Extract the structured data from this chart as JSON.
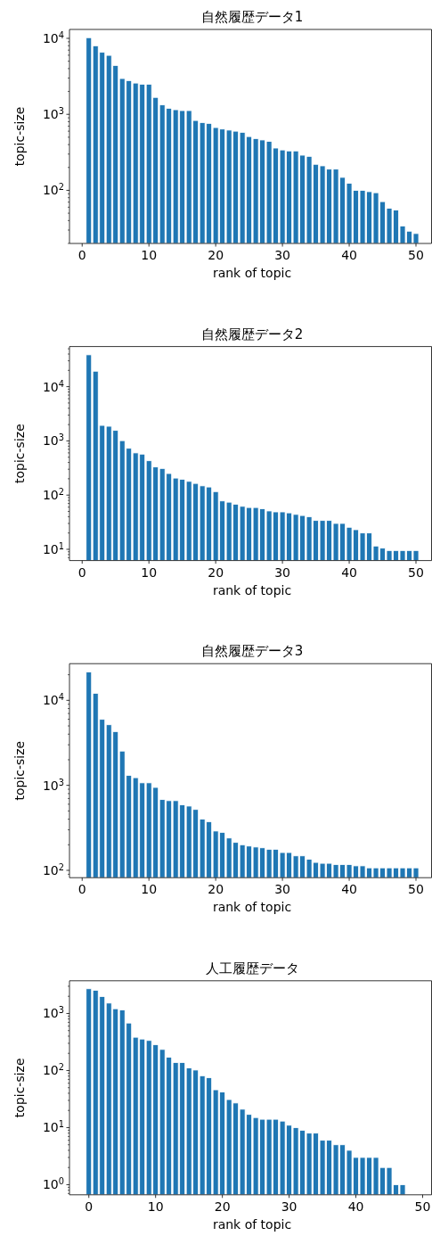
{
  "chart_data": [
    {
      "type": "bar",
      "title": "自然履歴データ1",
      "xlabel": "rank of topic",
      "ylabel": "topic-size",
      "color": "#1f77b4",
      "log": true,
      "x": [
        1,
        2,
        3,
        4,
        5,
        6,
        7,
        8,
        9,
        10,
        11,
        12,
        13,
        14,
        15,
        16,
        17,
        18,
        19,
        20,
        21,
        22,
        23,
        24,
        25,
        26,
        27,
        28,
        29,
        30,
        31,
        32,
        33,
        34,
        35,
        36,
        37,
        38,
        39,
        40,
        41,
        42,
        43,
        44,
        45,
        46,
        47,
        48,
        49,
        50
      ],
      "values": [
        10200,
        7980,
        6550,
        5970,
        4400,
        2960,
        2780,
        2580,
        2490,
        2490,
        1670,
        1330,
        1200,
        1150,
        1120,
        1120,
        830,
        780,
        760,
        670,
        640,
        620,
        600,
        580,
        510,
        480,
        460,
        440,
        360,
        340,
        330,
        330,
        290,
        280,
        220,
        210,
        190,
        190,
        148,
        124,
        100,
        100,
        96,
        93,
        71,
        58,
        55,
        34,
        29,
        27
      ],
      "xlim": [
        -1.9,
        52.4
      ],
      "xticks": [
        0,
        10,
        20,
        30,
        40,
        50
      ],
      "ylim": [
        20,
        13100
      ],
      "yticks": [
        {
          "value": 100,
          "label": "10$^{2}$"
        },
        {
          "value": 1000,
          "label": "10$^{3}$"
        },
        {
          "value": 10000,
          "label": "10$^{4}$"
        }
      ]
    },
    {
      "type": "bar",
      "title": "自然履歴データ2",
      "xlabel": "rank of topic",
      "ylabel": "topic-size",
      "color": "#1f77b4",
      "log": true,
      "x": [
        1,
        2,
        3,
        4,
        5,
        6,
        7,
        8,
        9,
        10,
        11,
        12,
        13,
        14,
        15,
        16,
        17,
        18,
        19,
        20,
        21,
        22,
        23,
        24,
        25,
        26,
        27,
        28,
        29,
        30,
        31,
        32,
        33,
        34,
        35,
        36,
        37,
        38,
        39,
        40,
        41,
        42,
        43,
        44,
        45,
        46,
        47,
        48,
        49,
        50
      ],
      "values": [
        38700,
        19300,
        1930,
        1860,
        1560,
        1010,
        730,
        600,
        570,
        430,
        330,
        310,
        250,
        206,
        196,
        179,
        164,
        148,
        141,
        116,
        78,
        74,
        68,
        62,
        59,
        59,
        56,
        51,
        49,
        49,
        47,
        44,
        42,
        40,
        34,
        34,
        34,
        30,
        30,
        25.5,
        23,
        20,
        20,
        11.5,
        10.5,
        9.5,
        9.5,
        9.5,
        9.5,
        9.5
      ],
      "xlim": [
        -1.9,
        52.4
      ],
      "xticks": [
        0,
        10,
        20,
        30,
        40,
        50
      ],
      "ylim": [
        6.2,
        55000
      ],
      "yticks": [
        {
          "value": 10,
          "label": "10$^{1}$"
        },
        {
          "value": 100,
          "label": "10$^{2}$"
        },
        {
          "value": 1000,
          "label": "10$^{3}$"
        },
        {
          "value": 10000,
          "label": "10$^{4}$"
        }
      ]
    },
    {
      "type": "bar",
      "title": "自然履歴データ3",
      "xlabel": "rank of topic",
      "ylabel": "topic-size",
      "color": "#1f77b4",
      "log": true,
      "x": [
        1,
        2,
        3,
        4,
        5,
        6,
        7,
        8,
        9,
        10,
        11,
        12,
        13,
        14,
        15,
        16,
        17,
        18,
        19,
        20,
        21,
        22,
        23,
        24,
        25,
        26,
        27,
        28,
        29,
        30,
        31,
        32,
        33,
        34,
        35,
        36,
        37,
        38,
        39,
        40,
        41,
        42,
        43,
        44,
        45,
        46,
        47,
        48,
        49,
        50
      ],
      "values": [
        21500,
        12100,
        5970,
        5160,
        4290,
        2530,
        1310,
        1230,
        1070,
        1070,
        945,
        680,
        660,
        660,
        590,
        570,
        520,
        400,
        374,
        290,
        280,
        240,
        213,
        200,
        193,
        188,
        184,
        177,
        177,
        162,
        162,
        148,
        148,
        135,
        124,
        121,
        121,
        117,
        117,
        117,
        113,
        113,
        107,
        107,
        107,
        107,
        107,
        107,
        107,
        107
      ],
      "xlim": [
        -1.9,
        52.4
      ],
      "xticks": [
        0,
        10,
        20,
        30,
        40,
        50
      ],
      "ylim": [
        82,
        27000
      ],
      "yticks": [
        {
          "value": 100,
          "label": "10$^{2}$"
        },
        {
          "value": 1000,
          "label": "10$^{3}$"
        },
        {
          "value": 10000,
          "label": "10$^{4}$"
        }
      ]
    },
    {
      "type": "bar",
      "title": "人工履歴データ",
      "xlabel": "rank of topic",
      "ylabel": "topic-size",
      "color": "#1f77b4",
      "log": true,
      "x": [
        0,
        1,
        2,
        3,
        4,
        5,
        6,
        7,
        8,
        9,
        10,
        11,
        12,
        13,
        14,
        15,
        16,
        17,
        18,
        19,
        20,
        21,
        22,
        23,
        24,
        25,
        26,
        27,
        28,
        29,
        30,
        31,
        32,
        33,
        34,
        35,
        36,
        37,
        38,
        39,
        40,
        41,
        42,
        43,
        44,
        45,
        46,
        47
      ],
      "values": [
        2710,
        2550,
        1980,
        1520,
        1210,
        1150,
        680,
        383,
        356,
        336,
        284,
        234,
        171,
        138,
        138,
        111,
        102,
        81,
        75,
        46,
        42,
        31,
        27,
        21,
        17,
        15,
        14,
        14,
        14,
        13,
        11,
        10,
        9,
        8,
        8,
        6,
        6,
        5,
        5,
        4,
        3,
        3,
        3,
        3,
        2,
        2,
        1,
        1
      ],
      "xlim": [
        -2.9,
        51.4
      ],
      "xticks": [
        0,
        10,
        20,
        30,
        40,
        50
      ],
      "ylim": [
        0.665,
        3740
      ],
      "yticks": [
        {
          "value": 1,
          "label": "10$^{0}$"
        },
        {
          "value": 10,
          "label": "10$^{1}$"
        },
        {
          "value": 100,
          "label": "10$^{2}$"
        },
        {
          "value": 1000,
          "label": "10$^{3}$"
        }
      ]
    }
  ]
}
